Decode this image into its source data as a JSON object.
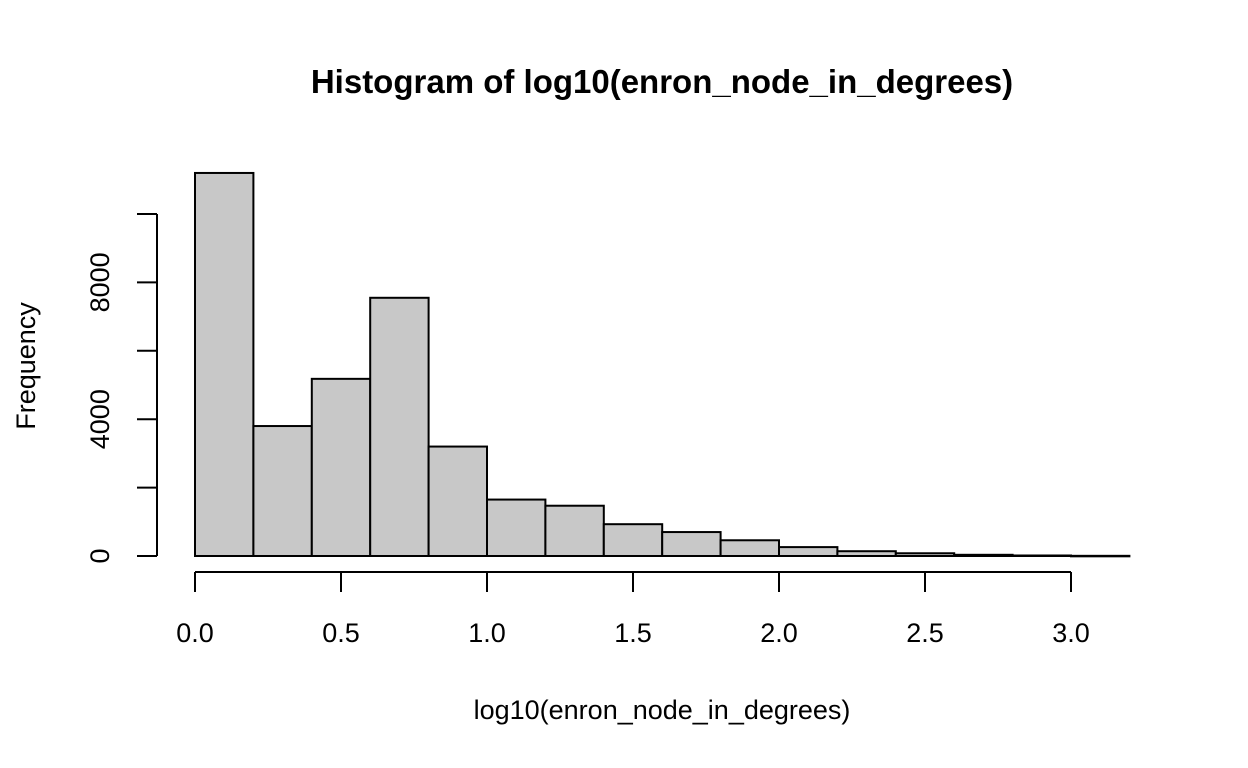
{
  "chart_data": {
    "type": "bar",
    "title": "Histogram of log10(enron_node_in_degrees)",
    "xlabel": "log10(enron_node_in_degrees)",
    "ylabel": "Frequency",
    "bar_color": "#c8c8c8",
    "xlim": [
      0,
      3.2
    ],
    "ylim": [
      0,
      11200
    ],
    "x_ticks": [
      "0.0",
      "0.5",
      "1.0",
      "1.5",
      "2.0",
      "2.5",
      "3.0"
    ],
    "y_ticks": [
      "0",
      "4000",
      "8000"
    ],
    "y_tick_marks": [
      0,
      2000,
      4000,
      6000,
      8000,
      10000
    ],
    "bins": [
      {
        "start": 0.0,
        "end": 0.2,
        "count": 11200
      },
      {
        "start": 0.2,
        "end": 0.4,
        "count": 3800
      },
      {
        "start": 0.4,
        "end": 0.6,
        "count": 5180
      },
      {
        "start": 0.6,
        "end": 0.8,
        "count": 7550
      },
      {
        "start": 0.8,
        "end": 1.0,
        "count": 3200
      },
      {
        "start": 1.0,
        "end": 1.2,
        "count": 1650
      },
      {
        "start": 1.2,
        "end": 1.4,
        "count": 1470
      },
      {
        "start": 1.4,
        "end": 1.6,
        "count": 930
      },
      {
        "start": 1.6,
        "end": 1.8,
        "count": 700
      },
      {
        "start": 1.8,
        "end": 2.0,
        "count": 460
      },
      {
        "start": 2.0,
        "end": 2.2,
        "count": 260
      },
      {
        "start": 2.2,
        "end": 2.4,
        "count": 140
      },
      {
        "start": 2.4,
        "end": 2.6,
        "count": 80
      },
      {
        "start": 2.6,
        "end": 2.8,
        "count": 35
      },
      {
        "start": 2.8,
        "end": 3.0,
        "count": 15
      },
      {
        "start": 3.0,
        "end": 3.2,
        "count": 5
      }
    ]
  }
}
